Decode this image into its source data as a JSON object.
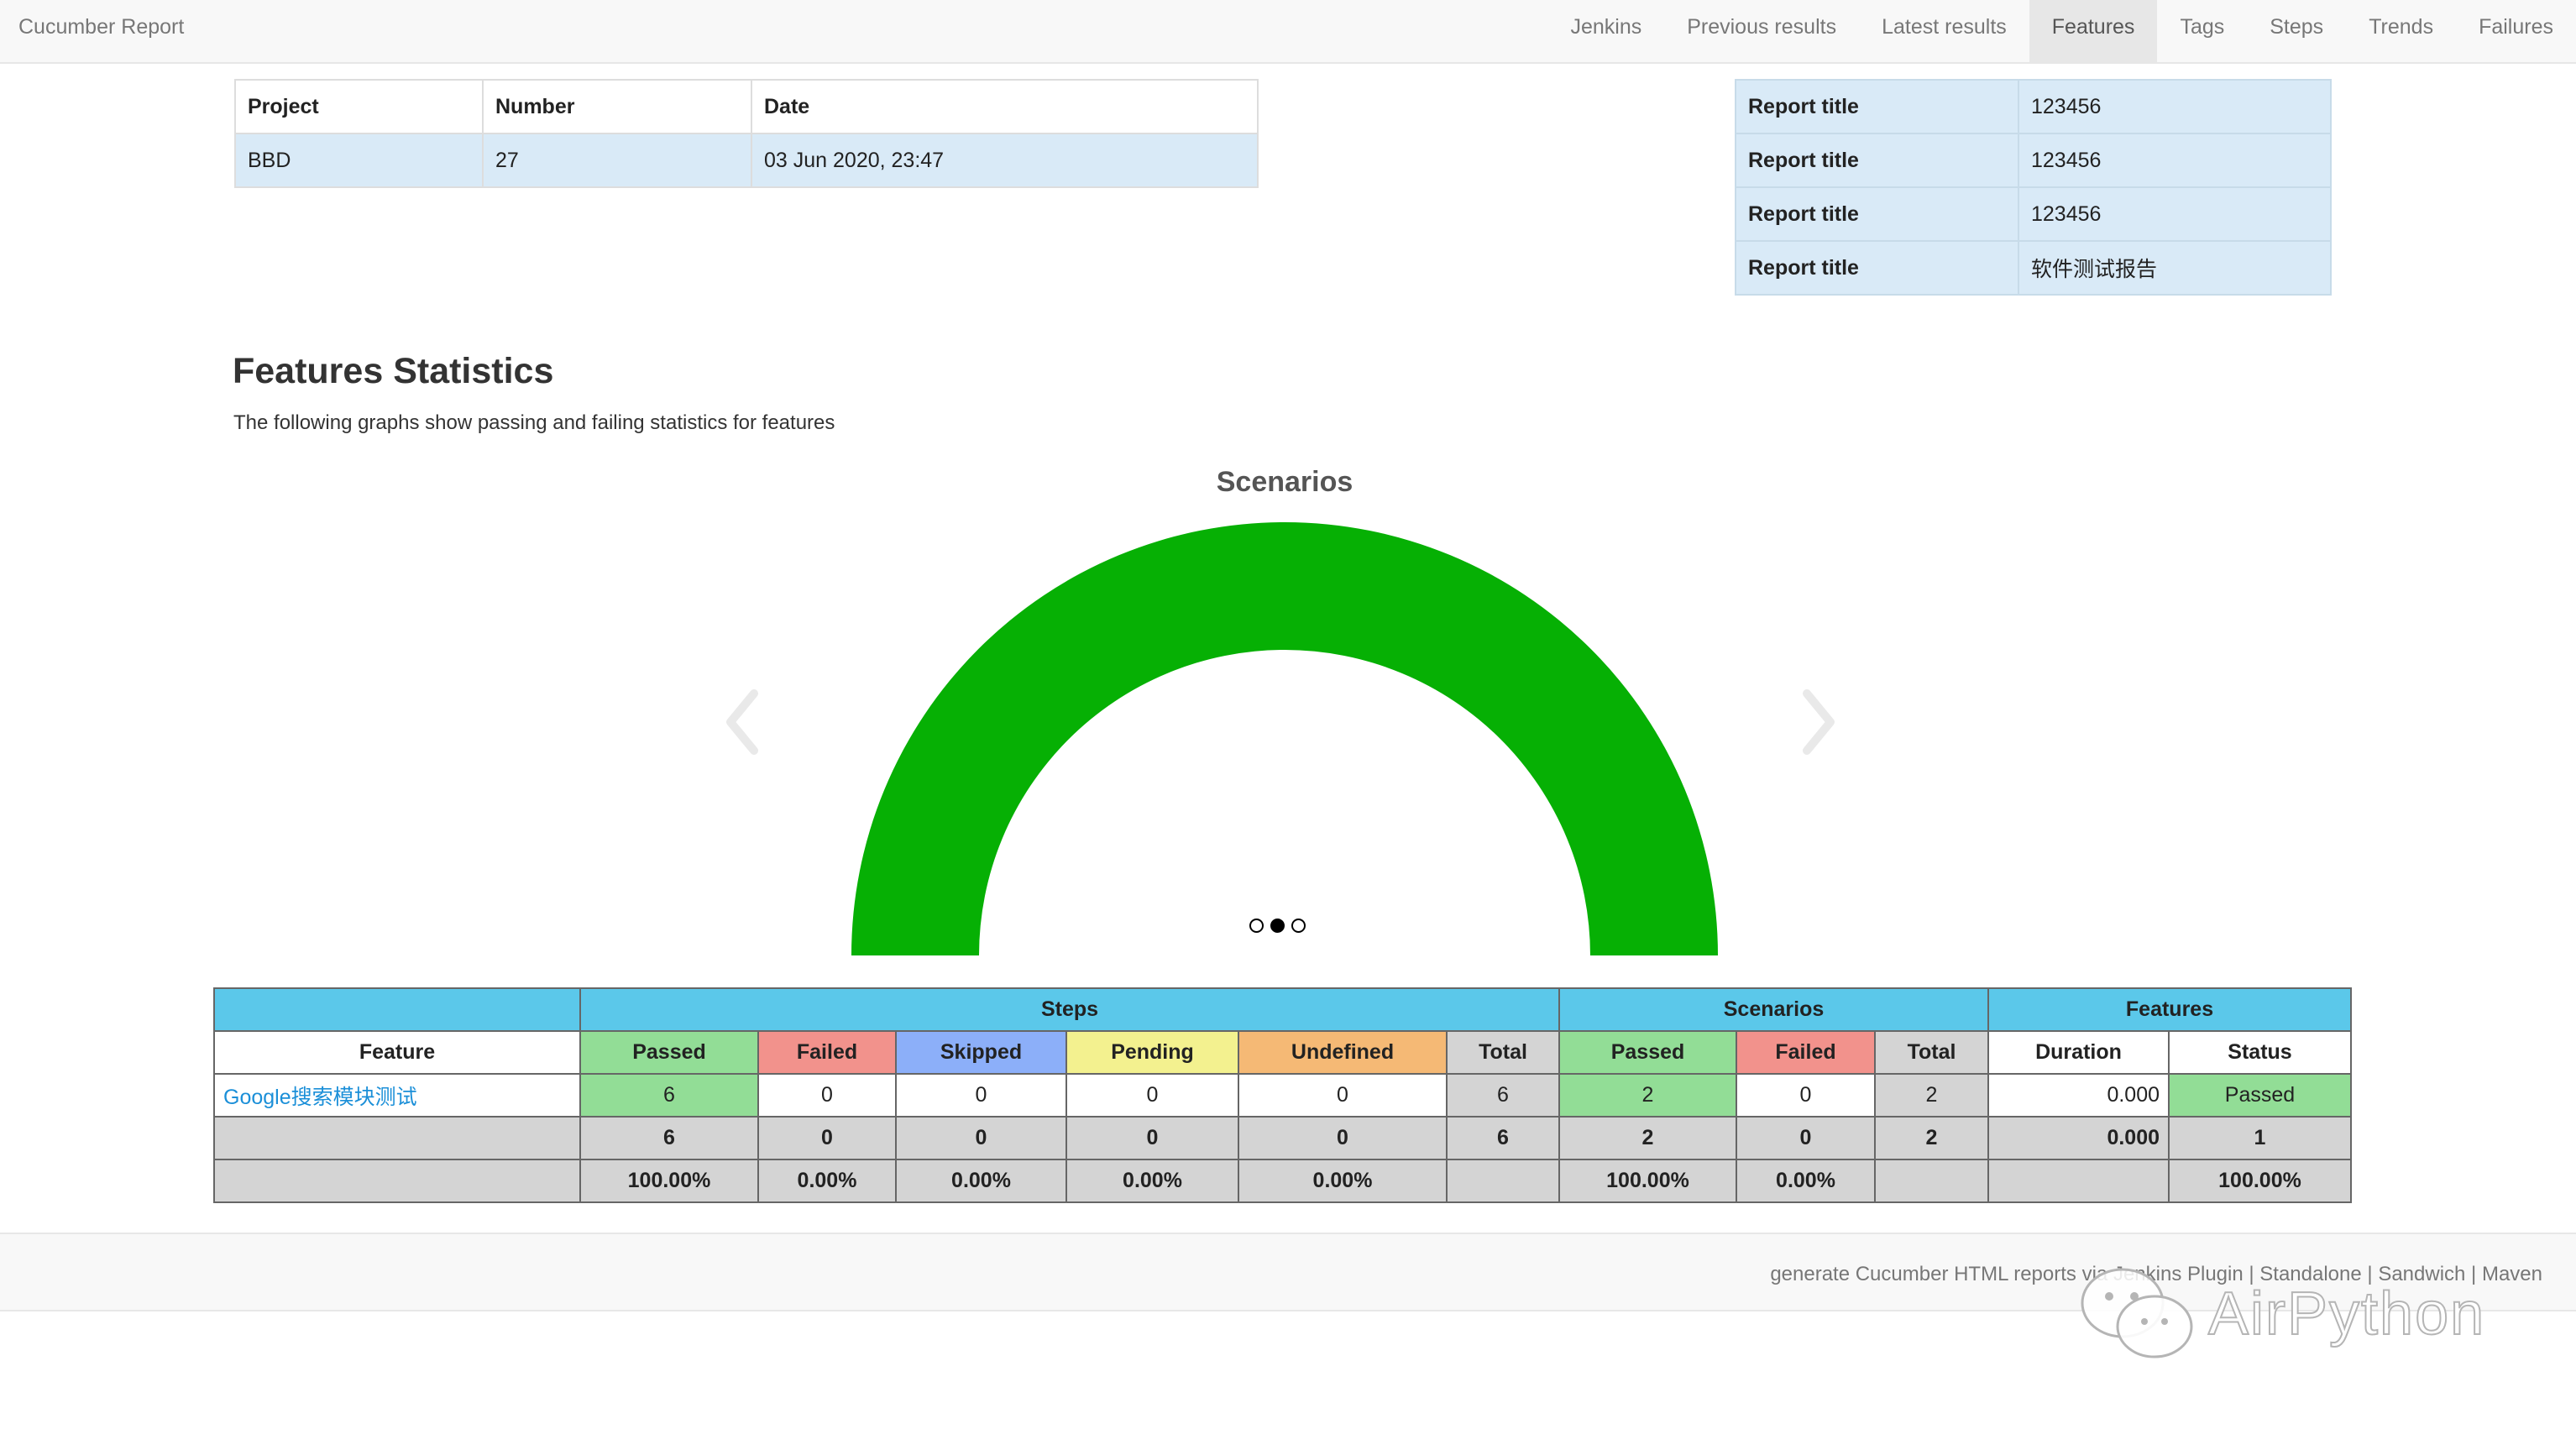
{
  "nav": {
    "brand": "Cucumber Report",
    "links": [
      "Jenkins",
      "Previous results",
      "Latest results",
      "Features",
      "Tags",
      "Steps",
      "Trends",
      "Failures"
    ],
    "active": "Features"
  },
  "build_info": {
    "headers": [
      "Project",
      "Number",
      "Date"
    ],
    "values": [
      "BBD",
      "27",
      "03 Jun 2020, 23:47"
    ]
  },
  "report_info": [
    {
      "key": "Report title",
      "value": "123456"
    },
    {
      "key": "Report title",
      "value": "123456"
    },
    {
      "key": "Report title",
      "value": "123456"
    },
    {
      "key": "Report title",
      "value": "软件测试报告"
    }
  ],
  "section": {
    "title": "Features Statistics",
    "description": "The following graphs show passing and failing statistics for features"
  },
  "chart_data": {
    "type": "pie",
    "title": "Scenarios",
    "labels": [
      "Passed"
    ],
    "values": [
      2
    ],
    "colors": [
      "#06b004"
    ]
  },
  "carousel": {
    "slides": 3,
    "active_index": 1
  },
  "stats": {
    "group_headers": {
      "steps": "Steps",
      "scenarios": "Scenarios",
      "features": "Features"
    },
    "column_headers": [
      "Feature",
      "Passed",
      "Failed",
      "Skipped",
      "Pending",
      "Undefined",
      "Total",
      "Passed",
      "Failed",
      "Total",
      "Duration",
      "Status"
    ],
    "row": {
      "feature": "Google搜索模块测试",
      "values": [
        "6",
        "0",
        "0",
        "0",
        "0",
        "6",
        "2",
        "0",
        "2",
        "0.000",
        "Passed"
      ]
    },
    "totals": [
      "",
      "6",
      "0",
      "0",
      "0",
      "0",
      "6",
      "2",
      "0",
      "2",
      "0.000",
      "1"
    ],
    "percentages": [
      "",
      "100.00%",
      "0.00%",
      "0.00%",
      "0.00%",
      "0.00%",
      "",
      "100.00%",
      "0.00%",
      "",
      "",
      "100.00%"
    ]
  },
  "colors": {
    "passed": "#92dd96",
    "failed": "#f2928c",
    "skipped": "#8caff9",
    "pending": "#f3f18f",
    "undefined": "#f5b975",
    "header": "#5bc8ea",
    "gauge": "#06b004"
  },
  "footer": {
    "prefix": "generate Cucumber HTML reports via",
    "links": [
      "Jenkins Plugin",
      "Standalone",
      "Sandwich",
      "Maven"
    ]
  },
  "watermark": {
    "text": "AirPython",
    "icon": "wechat-icon"
  }
}
